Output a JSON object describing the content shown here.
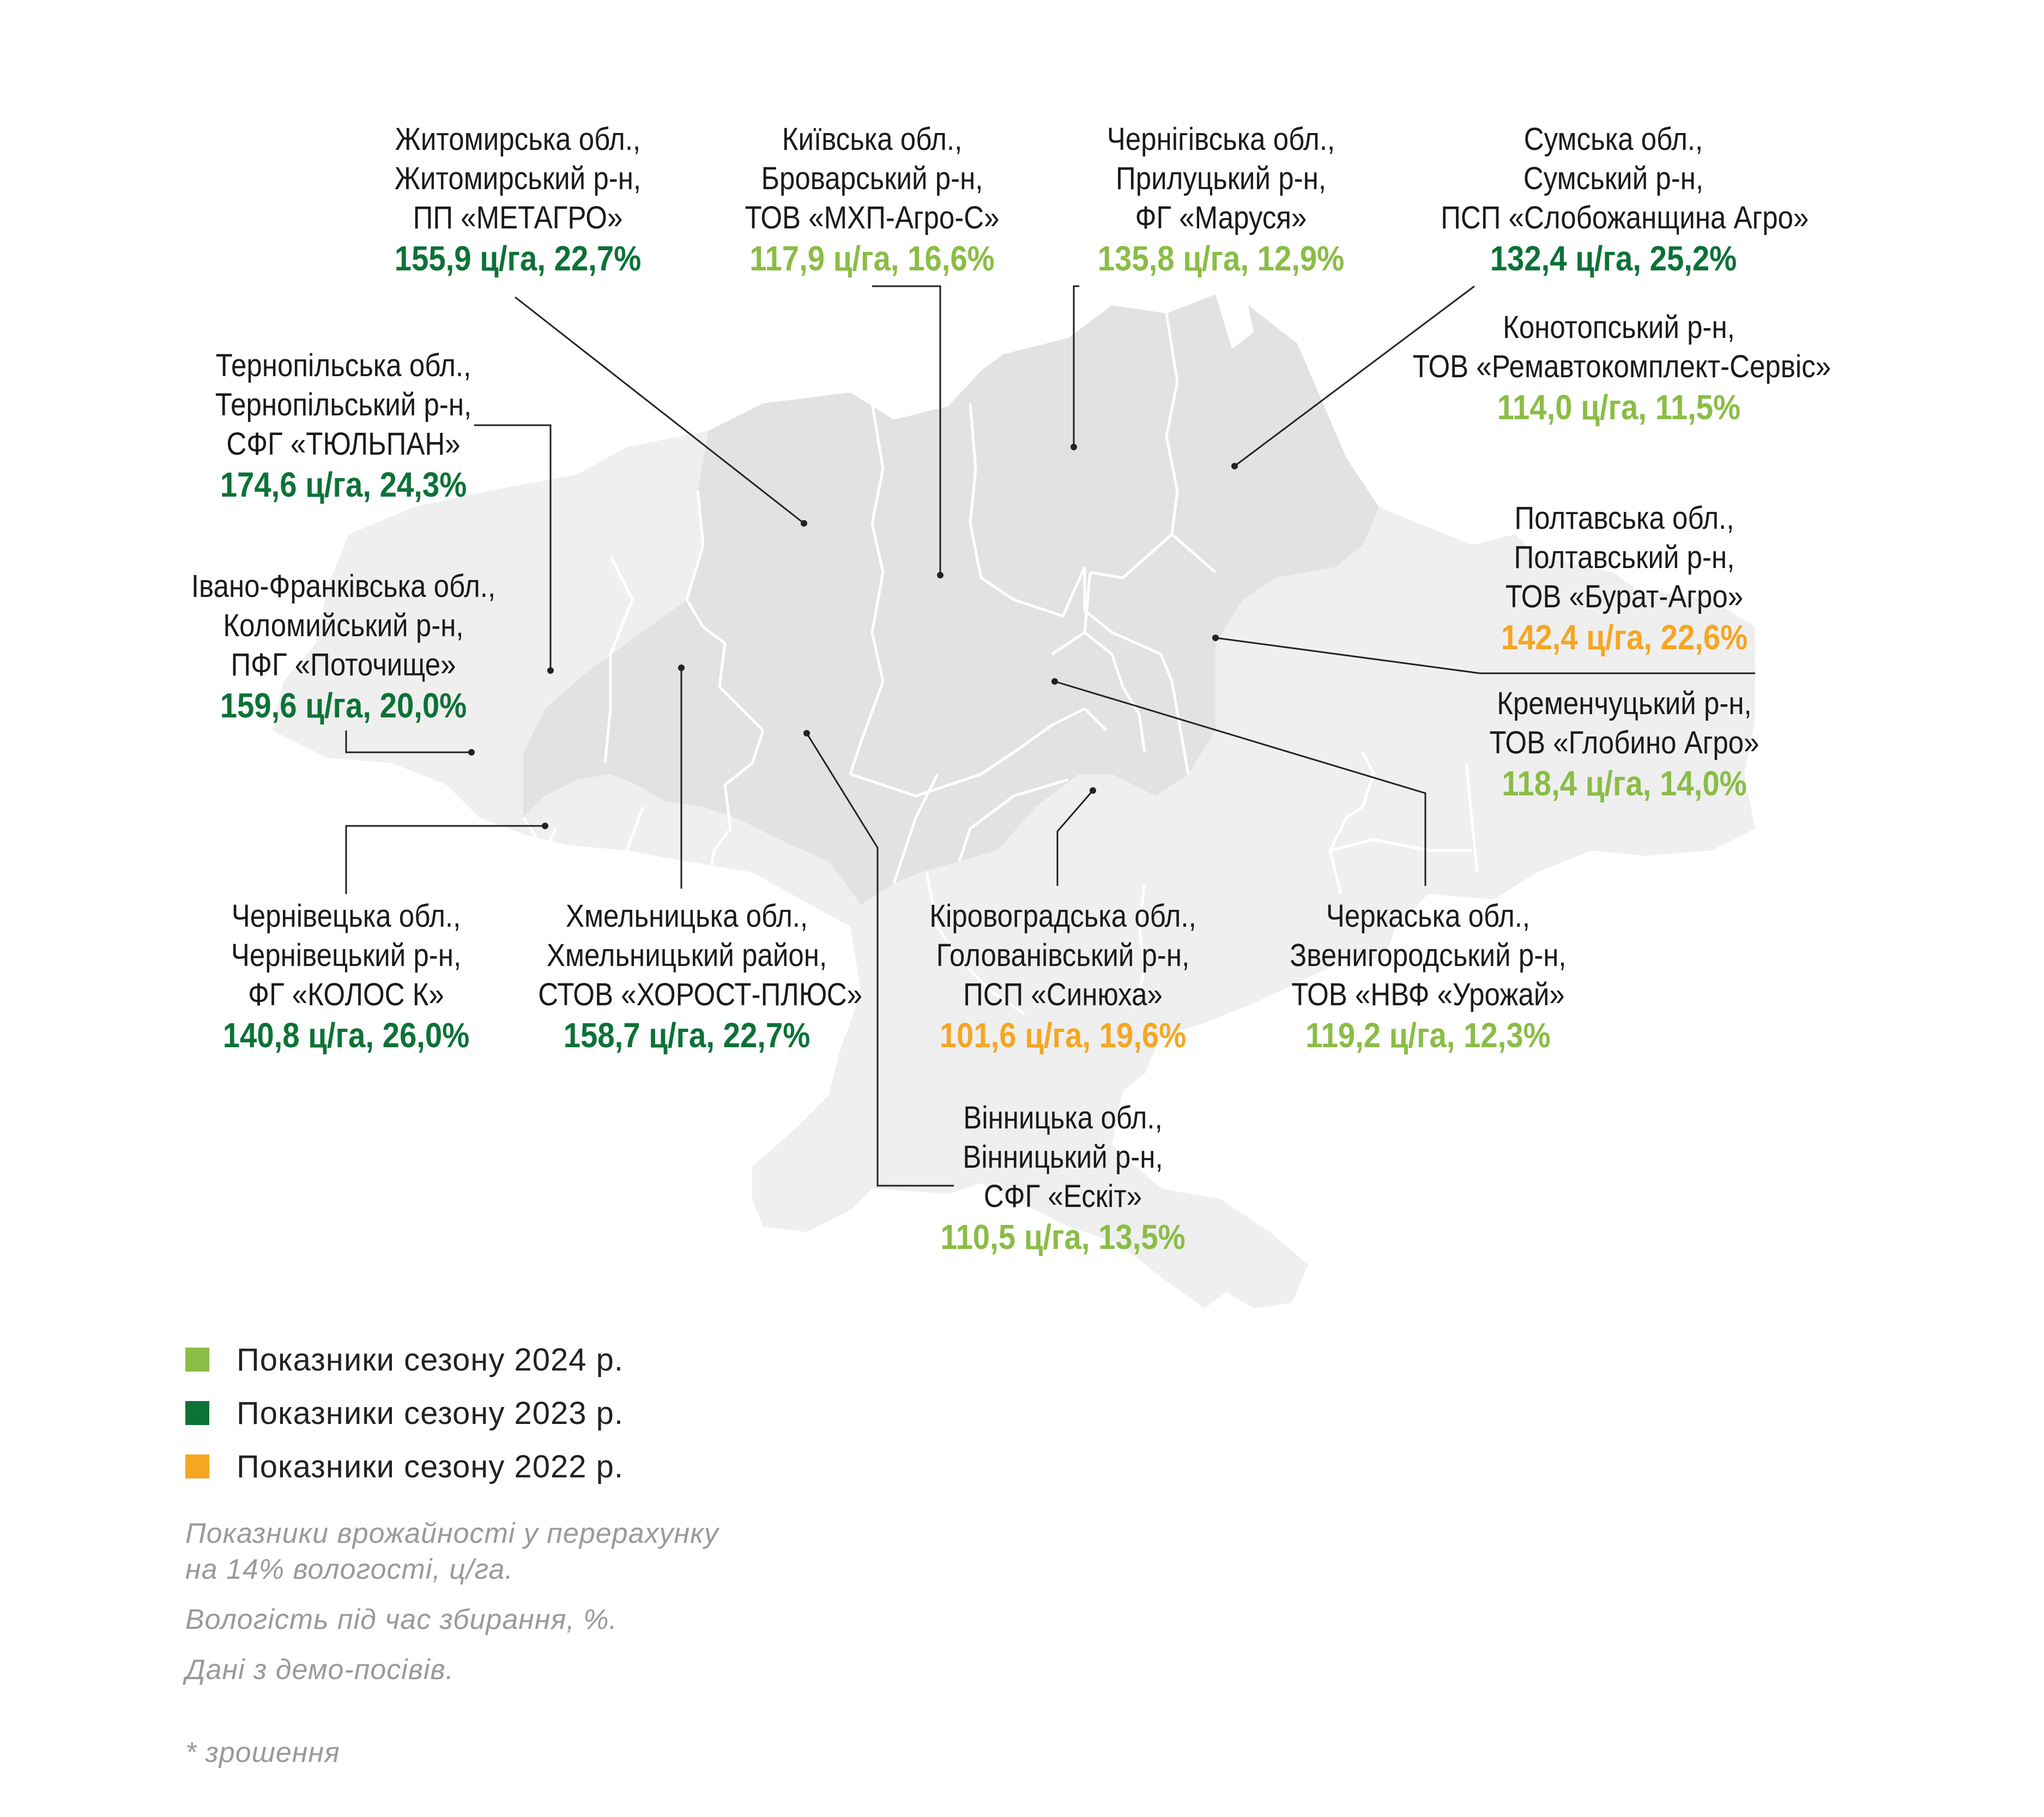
{
  "colors": {
    "season_2024": "#8ABD45",
    "season_2023": "#0C7237",
    "season_2022": "#F5A623",
    "map_fill_light": "#efefef",
    "map_fill_dark": "#e2e2e2",
    "region_border": "#ffffff",
    "leader_line": "#222222"
  },
  "sites": [
    {
      "id": "zhytomyr",
      "lines": [
        "Житомирська обл.,",
        "Житомирський р-н,",
        "ПП «МЕТАГРО»"
      ],
      "value": "155,9 ц/га, 22,7%",
      "season": "2023"
    },
    {
      "id": "kyiv",
      "lines": [
        "Київська обл.,",
        "Броварський р-н,",
        "ТОВ «МХП-Агро-С»"
      ],
      "value": "117,9 ц/га, 16,6%",
      "season": "2024"
    },
    {
      "id": "chernihiv",
      "lines": [
        "Чернігівська обл.,",
        "Прилуцький р-н,",
        "ФГ «Маруся»"
      ],
      "value": "135,8 ц/га, 12,9%",
      "season": "2024"
    },
    {
      "id": "sumy",
      "lines": [
        "Сумська обл.,",
        "Сумський р-н,",
        "ПСП «Слобожанщина Агро»"
      ],
      "value": "132,4 ц/га, 25,2%",
      "season": "2023"
    },
    {
      "id": "konotop",
      "lines": [
        "Конотопський р-н,",
        "ТОВ «Ремавтокомплект-Сервіс»"
      ],
      "value": "114,0 ц/га, 11,5%",
      "season": "2024"
    },
    {
      "id": "ternopil",
      "lines": [
        "Тернопільська обл.,",
        "Тернопільський р-н,",
        "СФГ «ТЮЛЬПАН»"
      ],
      "value": "174,6 ц/га, 24,3%",
      "season": "2023"
    },
    {
      "id": "ivano",
      "lines": [
        "Івано-Франківська обл.,",
        "Коломийський р-н,",
        "ПФГ «Поточище»"
      ],
      "value": "159,6 ц/га, 20,0%",
      "season": "2023"
    },
    {
      "id": "poltava",
      "lines": [
        "Полтавська обл.,",
        "Полтавський р-н,",
        "ТОВ «Бурат-Агро»"
      ],
      "value": "142,4 ц/га, 22,6%",
      "season": "2022"
    },
    {
      "id": "kremenchuk",
      "lines": [
        "Кременчуцький р-н,",
        "ТОВ «Глобино Агро»"
      ],
      "value": "118,4 ц/га, 14,0%",
      "season": "2024"
    },
    {
      "id": "chernivtsi",
      "lines": [
        "Чернівецька обл.,",
        "Чернівецький р-н,",
        "ФГ «КОЛОС К»"
      ],
      "value": "140,8 ц/га, 26,0%",
      "season": "2023"
    },
    {
      "id": "khmelnytskyi",
      "lines": [
        "Хмельницька обл.,",
        "Хмельницький район,",
        "СТОВ «ХОРОСТ-ПЛЮС»"
      ],
      "value": "158,7 ц/га, 22,7%",
      "season": "2023"
    },
    {
      "id": "kirovohrad",
      "lines": [
        "Кіровоградська обл.,",
        "Голованівський р-н,",
        "ПСП «Синюха»"
      ],
      "value": "101,6 ц/га, 19,6%",
      "season": "2022"
    },
    {
      "id": "cherkasy",
      "lines": [
        "Черкаська обл.,",
        "Звенигородський р-н,",
        "ТОВ «НВФ «Урожай»"
      ],
      "value": "119,2 ц/га, 12,3%",
      "season": "2024"
    },
    {
      "id": "vinnytsia",
      "lines": [
        "Вінницька обл.,",
        "Вінницький р-н,",
        "СФГ «Ескіт»"
      ],
      "value": "110,5 ц/га, 13,5%",
      "season": "2024"
    }
  ],
  "legend": [
    {
      "season": "2024",
      "label": "Показники сезону 2024 р."
    },
    {
      "season": "2023",
      "label": "Показники сезону 2023 р."
    },
    {
      "season": "2022",
      "label": "Показники сезону 2022 р."
    }
  ],
  "notes": {
    "yield_line1": "Показники врожайності у перерахунку",
    "yield_line2": "на 14% вологості, ц/га.",
    "moisture": "Вологість під час збирання, %.",
    "demo": "Дані з демо-посівів.",
    "irrigation": "* зрошення"
  }
}
